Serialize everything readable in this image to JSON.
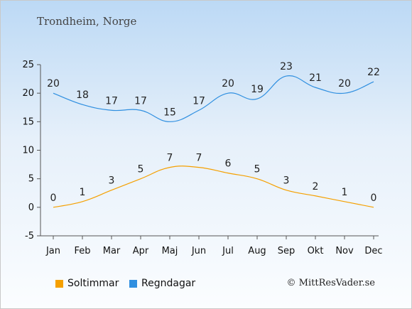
{
  "title": "Trondheim, Norge",
  "credit": "© MittResVader.se",
  "chart_data": {
    "type": "line",
    "categories": [
      "Jan",
      "Feb",
      "Mar",
      "Apr",
      "Maj",
      "Jun",
      "Jul",
      "Aug",
      "Sep",
      "Okt",
      "Nov",
      "Dec"
    ],
    "yticks": [
      -5,
      0,
      5,
      10,
      15,
      20,
      25
    ],
    "ylim": [
      -5,
      25
    ],
    "grid": false,
    "legend_position": "bottom",
    "series": [
      {
        "name": "Soltimmar",
        "color": "#f5a000",
        "values": [
          0,
          1,
          3,
          5,
          7,
          7,
          6,
          5,
          3,
          2,
          1,
          0
        ]
      },
      {
        "name": "Regndagar",
        "color": "#2f8fe0",
        "values": [
          20,
          18,
          17,
          17,
          15,
          17,
          20,
          19,
          23,
          21,
          20,
          22
        ]
      }
    ]
  }
}
